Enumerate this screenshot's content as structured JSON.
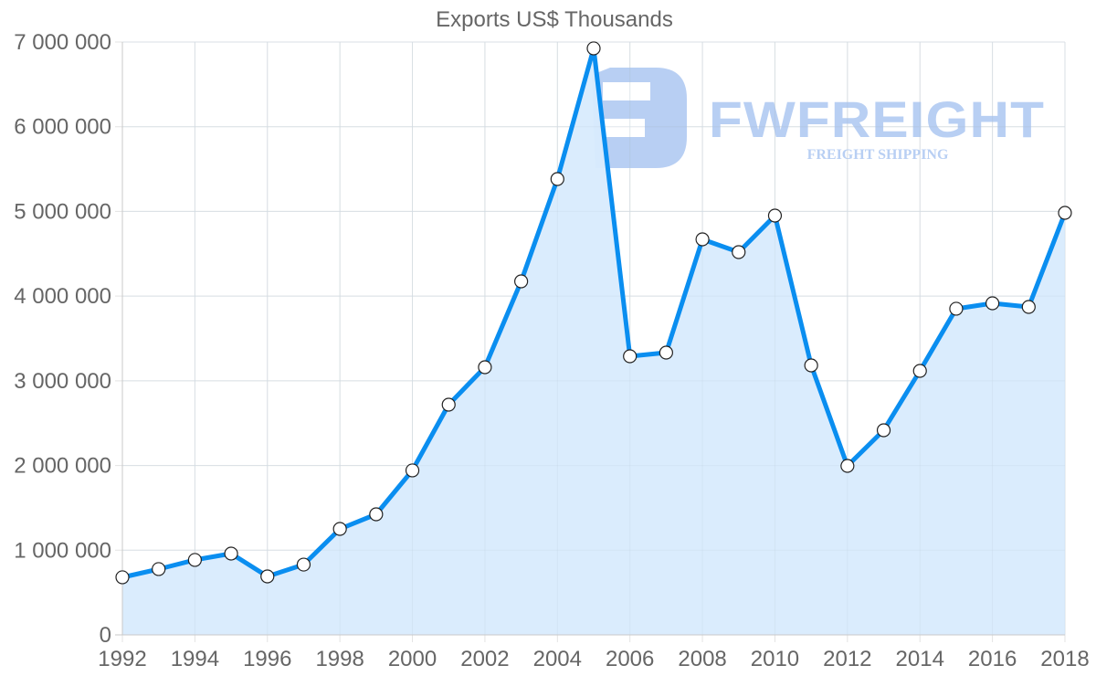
{
  "chart_data": {
    "type": "area",
    "title": "Exports US$ Thousands",
    "xlabel": "",
    "ylabel": "",
    "x": [
      1992,
      1993,
      1994,
      1995,
      1996,
      1997,
      1998,
      1999,
      2000,
      2001,
      2002,
      2003,
      2004,
      2005,
      2006,
      2007,
      2008,
      2009,
      2010,
      2011,
      2012,
      2013,
      2014,
      2015,
      2016,
      2017,
      2018
    ],
    "series": [
      {
        "name": "Exports US$ Thousands",
        "values": [
          680000,
          777000,
          885000,
          960000,
          690000,
          830000,
          1251000,
          1424000,
          1942000,
          2718000,
          3160000,
          4174000,
          5382000,
          6925000,
          3290000,
          3333000,
          4670000,
          4519000,
          4951000,
          3182000,
          1995000,
          2416000,
          3117000,
          3851000,
          3915000,
          3872000,
          4983000
        ]
      }
    ],
    "ylim": [
      0,
      7000000
    ],
    "xlim": [
      1992,
      2018
    ],
    "y_ticks": [
      0,
      1000000,
      2000000,
      3000000,
      4000000,
      5000000,
      6000000,
      7000000
    ],
    "y_tick_labels": [
      "0",
      "1 000 000",
      "2 000 000",
      "3 000 000",
      "4 000 000",
      "5 000 000",
      "6 000 000",
      "7 000 000"
    ],
    "x_tick_labels": [
      "1992",
      "1994",
      "1996",
      "1998",
      "2000",
      "2002",
      "2004",
      "2006",
      "2008",
      "2010",
      "2012",
      "2014",
      "2016",
      "2018"
    ],
    "grid": true,
    "legend": "none",
    "colors": {
      "line": "#0a8ef0",
      "fill": "#d8ebfd",
      "marker_fill": "#ffffff",
      "marker_stroke": "#222222",
      "grid": "#e3e3e3",
      "text": "#666666"
    }
  },
  "watermark": {
    "brand": "FWFREIGHT",
    "tagline": "FREIGHT SHIPPING",
    "color": "#7fa8eb"
  }
}
